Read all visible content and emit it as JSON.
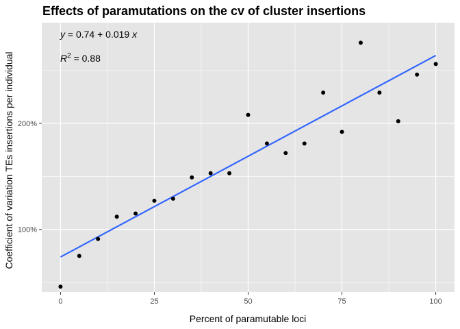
{
  "chart_data": {
    "type": "scatter",
    "title": "Effects of paramutations on the cv of cluster insertions",
    "xlabel": "Percent of paramutable loci",
    "ylabel": "Coefficient of variation TEs insertions per individual",
    "xlim": [
      -5,
      105
    ],
    "ylim": [
      0.41,
      2.95
    ],
    "x_ticks": [
      0,
      25,
      50,
      75,
      100
    ],
    "x_tick_labels": [
      "0",
      "25",
      "50",
      "75",
      "100"
    ],
    "y_ticks": [
      1.0,
      2.0
    ],
    "y_tick_labels": [
      "100%",
      "200%"
    ],
    "grid": true,
    "points": [
      {
        "x": 0,
        "y": 0.46
      },
      {
        "x": 5,
        "y": 0.75
      },
      {
        "x": 10,
        "y": 0.91
      },
      {
        "x": 15,
        "y": 1.12
      },
      {
        "x": 20,
        "y": 1.15
      },
      {
        "x": 25,
        "y": 1.27
      },
      {
        "x": 30,
        "y": 1.29
      },
      {
        "x": 35,
        "y": 1.49
      },
      {
        "x": 40,
        "y": 1.53
      },
      {
        "x": 45,
        "y": 1.53
      },
      {
        "x": 50,
        "y": 2.08
      },
      {
        "x": 55,
        "y": 1.81
      },
      {
        "x": 60,
        "y": 1.72
      },
      {
        "x": 65,
        "y": 1.81
      },
      {
        "x": 70,
        "y": 2.29
      },
      {
        "x": 75,
        "y": 1.92
      },
      {
        "x": 80,
        "y": 2.76
      },
      {
        "x": 85,
        "y": 2.29
      },
      {
        "x": 90,
        "y": 2.02
      },
      {
        "x": 95,
        "y": 2.46
      },
      {
        "x": 100,
        "y": 2.56
      }
    ],
    "fit": {
      "intercept": 0.74,
      "slope": 0.019,
      "color": "#3366ff"
    },
    "annotations": {
      "equation_y": "y",
      "equation_rest": " = 0.74 + 0.019 ",
      "equation_x": "x",
      "r2_label": "R",
      "r2_sup": "2",
      "r2_value": " = 0.88"
    },
    "colors": {
      "panel": "#e5e5e5",
      "grid": "#ffffff",
      "point": "#000000"
    }
  }
}
